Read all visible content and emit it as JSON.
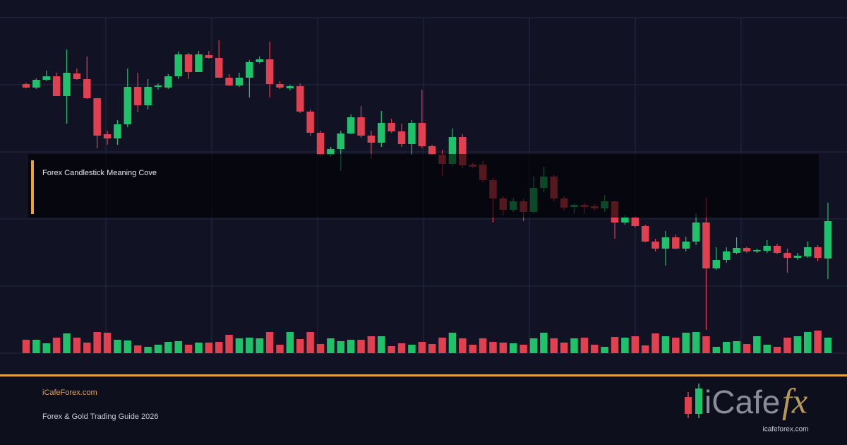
{
  "chart_data": {
    "type": "candlestick",
    "ylim": [
      0,
      475
    ],
    "yticks": [
      0,
      95,
      190,
      285,
      380,
      475
    ],
    "grid": true,
    "up_color": "#1fc16b",
    "down_color": "#e0404f",
    "open": [
      381,
      376,
      387,
      392,
      364,
      396,
      388,
      361,
      310,
      304,
      324,
      377,
      351,
      377,
      376,
      392,
      423,
      398,
      422,
      418,
      390,
      379,
      390,
      412,
      416,
      381,
      375,
      378,
      342,
      312,
      281,
      289,
      311,
      334,
      308,
      298,
      326,
      314,
      296,
      326,
      293,
      281,
      268,
      306,
      267,
      267,
      245,
      219,
      203,
      215,
      200,
      234,
      250,
      219,
      207,
      210,
      208,
      205,
      215,
      185,
      192,
      180,
      158,
      148,
      164,
      148,
      158,
      185,
      120,
      132,
      142,
      149,
      144,
      145,
      152,
      142,
      135,
      137,
      150,
      134
    ],
    "high": [
      383,
      389,
      400,
      397,
      430,
      403,
      420,
      361,
      315,
      330,
      403,
      397,
      388,
      382,
      395,
      427,
      425,
      428,
      428,
      443,
      395,
      397,
      415,
      420,
      441,
      385,
      380,
      382,
      345,
      315,
      292,
      315,
      338,
      350,
      315,
      343,
      332,
      325,
      330,
      373,
      295,
      288,
      318,
      310,
      270,
      272,
      248,
      222,
      220,
      219,
      250,
      264,
      252,
      222,
      212,
      213,
      211,
      224,
      215,
      196,
      194,
      182,
      162,
      173,
      168,
      165,
      198,
      220,
      150,
      150,
      164,
      151,
      148,
      160,
      155,
      148,
      142,
      158,
      153,
      213
    ],
    "low": [
      375,
      374,
      385,
      364,
      325,
      387,
      360,
      290,
      295,
      295,
      320,
      341,
      345,
      373,
      374,
      388,
      388,
      398,
      417,
      390,
      378,
      377,
      362,
      410,
      362,
      374,
      372,
      340,
      308,
      278,
      278,
      258,
      310,
      305,
      275,
      292,
      312,
      292,
      280,
      290,
      280,
      250,
      265,
      262,
      262,
      242,
      185,
      195,
      200,
      187,
      198,
      228,
      215,
      202,
      198,
      197,
      202,
      200,
      162,
      182,
      178,
      157,
      144,
      124,
      147,
      144,
      153,
      33,
      118,
      128,
      140,
      142,
      142,
      142,
      140,
      114,
      132,
      135,
      130,
      105
    ],
    "close": [
      376,
      387,
      392,
      364,
      397,
      388,
      361,
      308,
      304,
      324,
      377,
      351,
      377,
      379,
      392,
      423,
      398,
      423,
      418,
      390,
      379,
      390,
      412,
      416,
      381,
      376,
      378,
      342,
      312,
      281,
      289,
      311,
      334,
      308,
      298,
      326,
      314,
      296,
      326,
      293,
      281,
      268,
      306,
      266,
      264,
      245,
      219,
      203,
      215,
      200,
      234,
      250,
      219,
      206,
      210,
      207,
      205,
      215,
      185,
      192,
      180,
      158,
      148,
      164,
      148,
      158,
      185,
      120,
      132,
      144,
      149,
      144,
      146,
      152,
      142,
      135,
      138,
      150,
      135,
      187
    ],
    "vlim": [
      0,
      40
    ],
    "volume": [
      19,
      19,
      14,
      22,
      28,
      22,
      15,
      30,
      29,
      19,
      18,
      11,
      9,
      12,
      16,
      17,
      12,
      15,
      15,
      16,
      26,
      21,
      22,
      21,
      30,
      12,
      30,
      20,
      30,
      13,
      21,
      17,
      19,
      19,
      24,
      24,
      10,
      14,
      12,
      16,
      13,
      22,
      29,
      21,
      12,
      21,
      16,
      15,
      14,
      12,
      21,
      29,
      21,
      15,
      21,
      22,
      12,
      9,
      23,
      22,
      24,
      11,
      28,
      24,
      22,
      29,
      30,
      24,
      9,
      16,
      17,
      13,
      24,
      12,
      9,
      22,
      24,
      30,
      32,
      22
    ]
  },
  "overlay": {
    "title": "Forex Candlestick Meaning Cove"
  },
  "footer": {
    "site": "iCafeForex.com",
    "subtitle": "Forex & Gold Trading Guide 2026",
    "logo_main": "iCafe",
    "logo_accent": "fx",
    "logo_url": "icafeforex.com"
  }
}
